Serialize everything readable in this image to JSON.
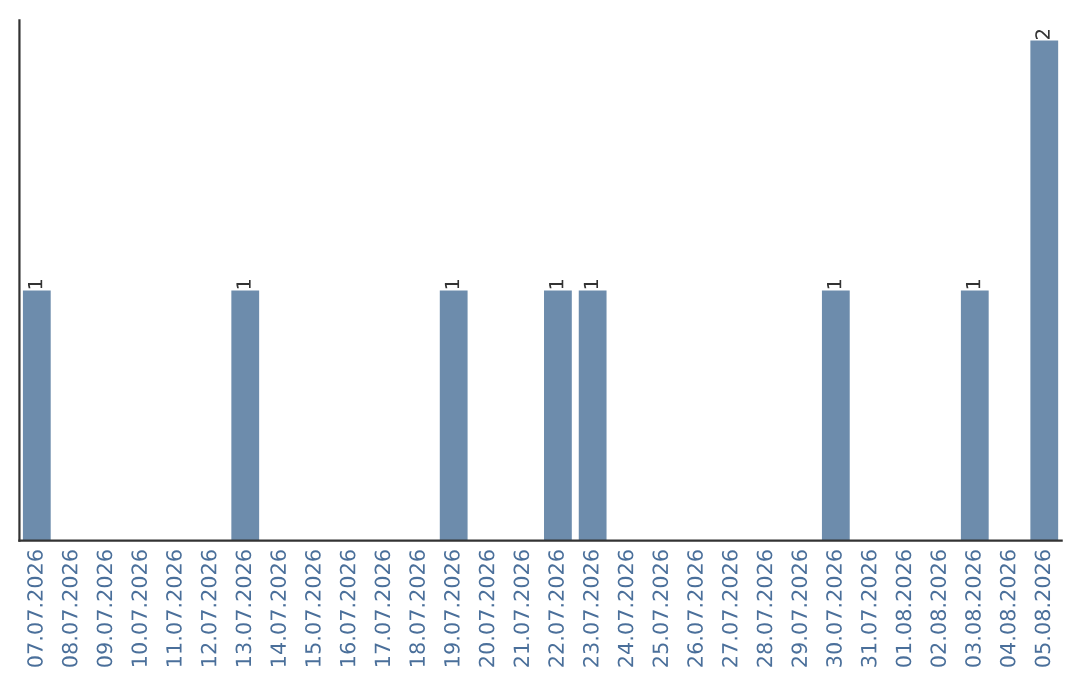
{
  "chart_data": {
    "type": "bar",
    "categories": [
      "07.07.2026",
      "08.07.2026",
      "09.07.2026",
      "10.07.2026",
      "11.07.2026",
      "12.07.2026",
      "13.07.2026",
      "14.07.2026",
      "15.07.2026",
      "16.07.2026",
      "17.07.2026",
      "18.07.2026",
      "19.07.2026",
      "20.07.2026",
      "21.07.2026",
      "22.07.2026",
      "23.07.2026",
      "24.07.2026",
      "25.07.2026",
      "26.07.2026",
      "27.07.2026",
      "28.07.2026",
      "29.07.2026",
      "30.07.2026",
      "31.07.2026",
      "01.08.2026",
      "02.08.2026",
      "03.08.2026",
      "04.08.2026",
      "05.08.2026"
    ],
    "values": [
      1,
      0,
      0,
      0,
      0,
      0,
      1,
      0,
      0,
      0,
      0,
      0,
      1,
      0,
      0,
      1,
      1,
      0,
      0,
      0,
      0,
      0,
      0,
      1,
      0,
      0,
      0,
      1,
      0,
      2
    ],
    "value_labels": [
      "1",
      null,
      null,
      null,
      null,
      null,
      "1",
      null,
      null,
      null,
      null,
      null,
      "1",
      null,
      null,
      "1",
      "1",
      null,
      null,
      null,
      null,
      null,
      null,
      "1",
      null,
      null,
      null,
      "1",
      null,
      "2"
    ],
    "color": "#6d8cac",
    "tick_labels": "x",
    "grid": false,
    "legend": false
  }
}
